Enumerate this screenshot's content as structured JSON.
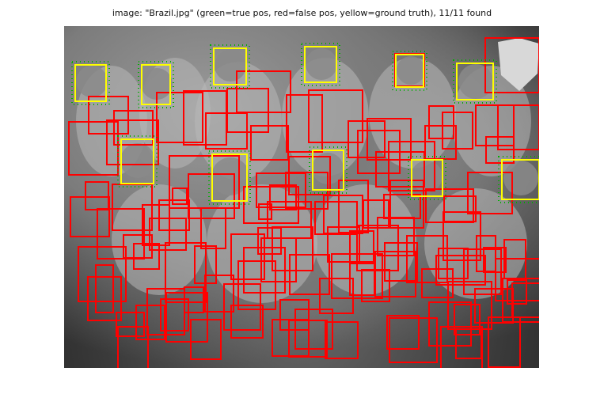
{
  "title": "image: \"Brazil.jpg\" (green=true pos, red=false pos, yellow=ground truth), 11/11 found",
  "colors": {
    "true_positive": "#00b000",
    "false_positive": "#ff0000",
    "ground_truth": "#ffff00"
  }
}
